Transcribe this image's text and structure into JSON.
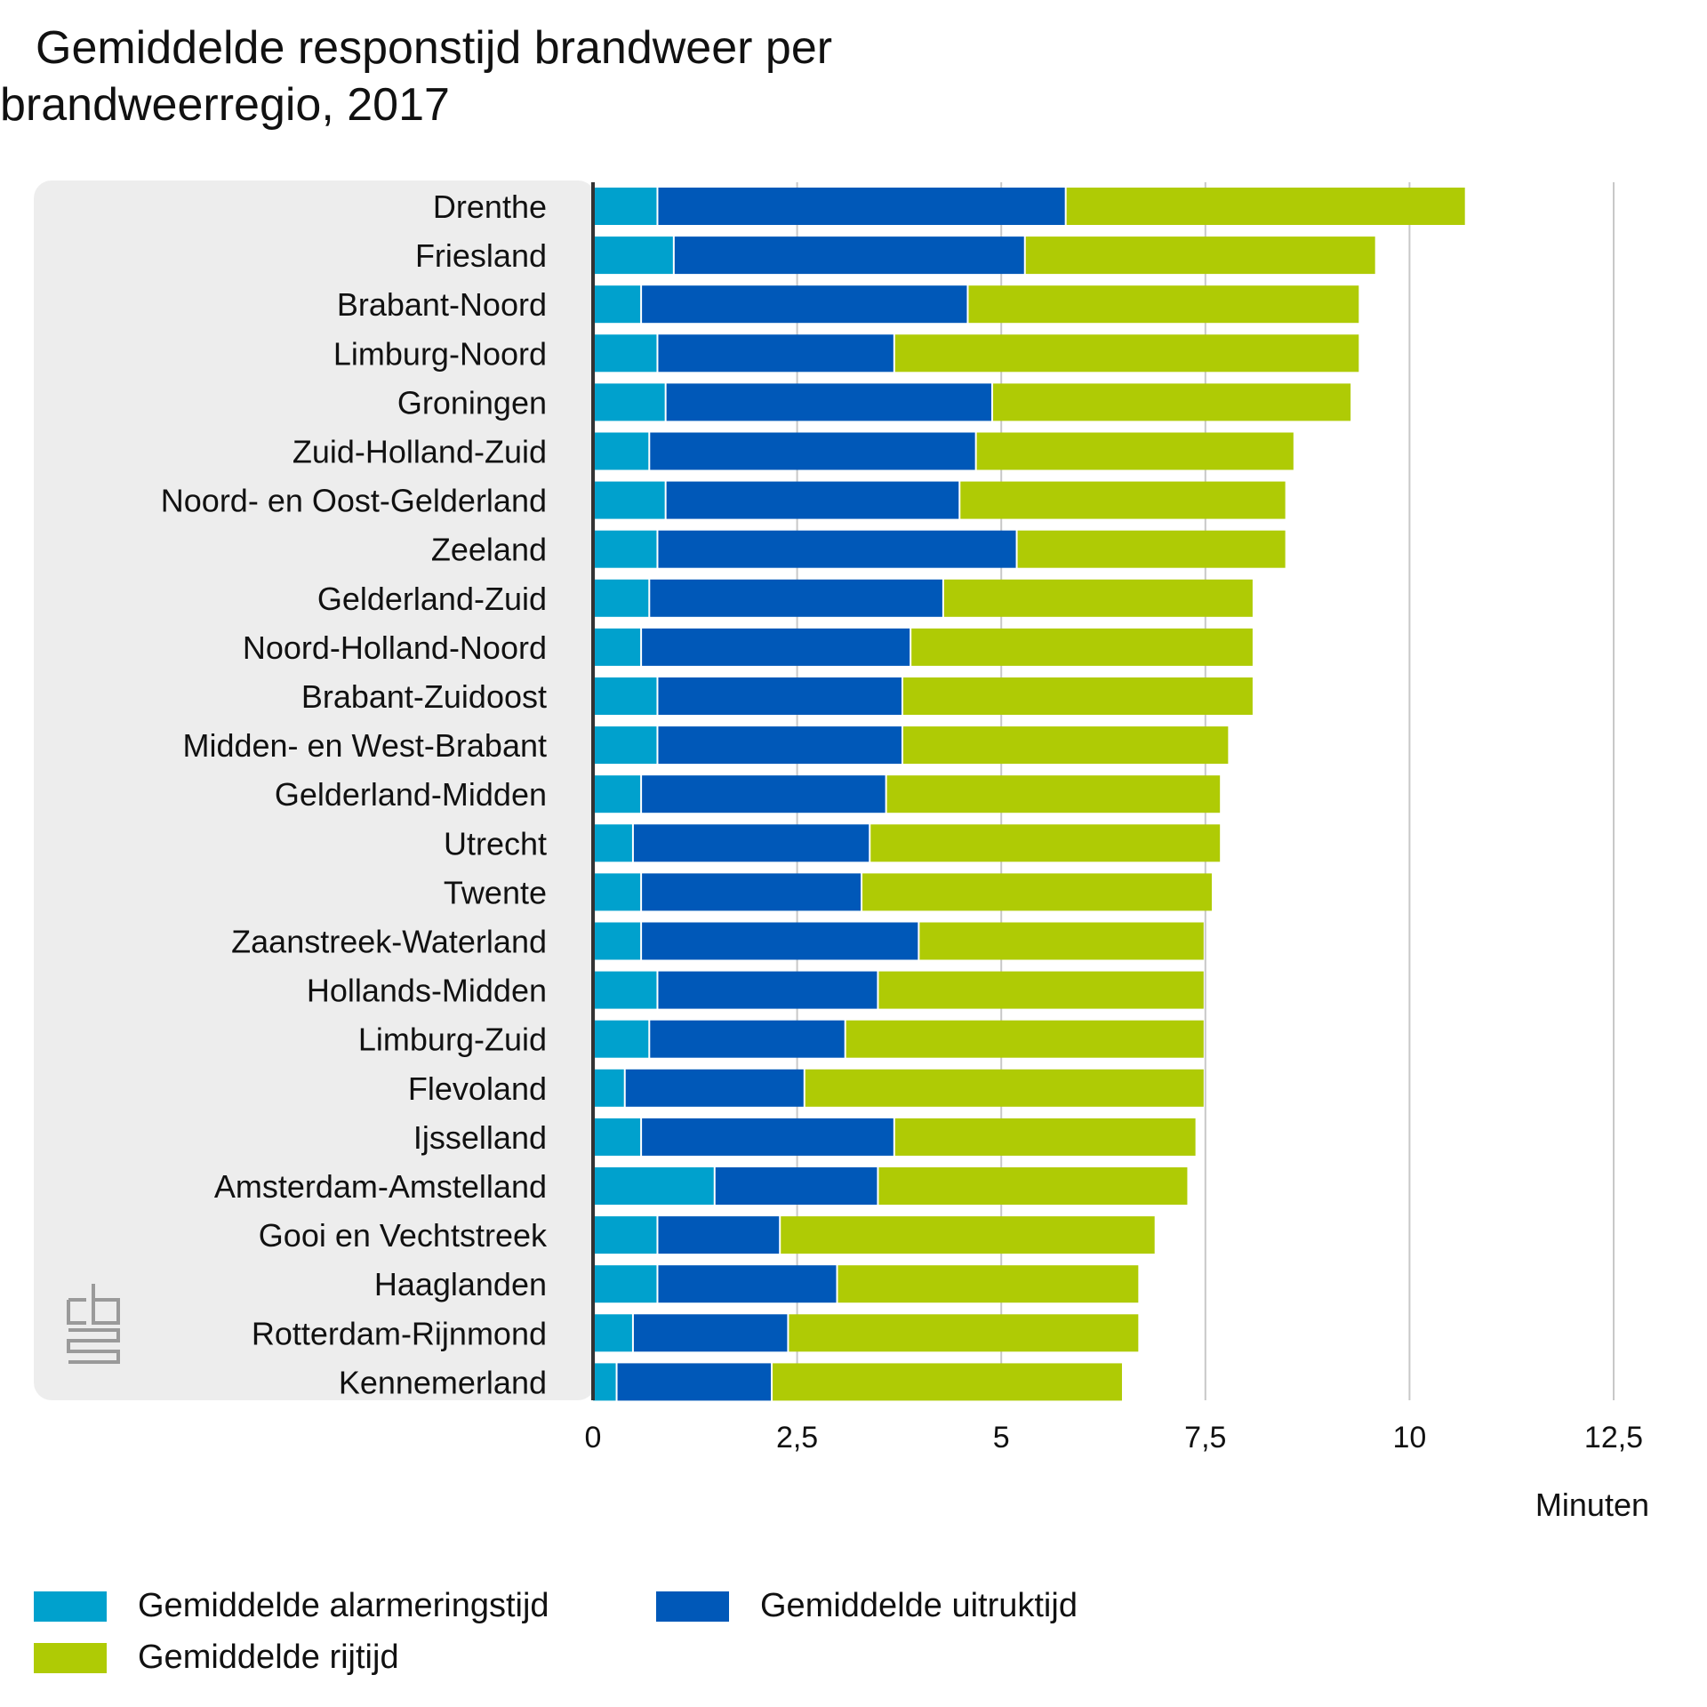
{
  "title_lines": [
    "Gemiddelde responstijd brandweer per",
    "brandweerregio, 2017"
  ],
  "logo_name": "cbs-logo",
  "legend": [
    {
      "label": "Gemiddelde alarmeringstijd",
      "color": "#00a1cd"
    },
    {
      "label": "Gemiddelde uitruktijd",
      "color": "#0058b8"
    },
    {
      "label": "Gemiddelde rijtijd",
      "color": "#afcb05"
    }
  ],
  "chart_data": {
    "type": "bar",
    "orientation": "horizontal",
    "stacked": true,
    "title": "Gemiddelde responstijd brandweer per brandweerregio, 2017",
    "xlabel": "Minuten",
    "ylabel": "",
    "xlim": [
      0,
      12.5
    ],
    "xticks": [
      0,
      2.5,
      5,
      7.5,
      10,
      12.5
    ],
    "xtick_labels": [
      "0",
      "2,5",
      "5",
      "7,5",
      "10",
      "12,5"
    ],
    "grid": true,
    "legend_position": "bottom",
    "categories": [
      "Drenthe",
      "Friesland",
      "Brabant-Noord",
      "Limburg-Noord",
      "Groningen",
      "Zuid-Holland-Zuid",
      "Noord- en Oost-Gelderland",
      "Zeeland",
      "Gelderland-Zuid",
      "Noord-Holland-Noord",
      "Brabant-Zuidoost",
      "Midden- en West-Brabant",
      "Gelderland-Midden",
      "Utrecht",
      "Twente",
      "Zaanstreek-Waterland",
      "Hollands-Midden",
      "Limburg-Zuid",
      "Flevoland",
      "Ijsselland",
      "Amsterdam-Amstelland",
      "Gooi en Vechtstreek",
      "Haaglanden",
      "Rotterdam-Rijnmond",
      "Kennemerland"
    ],
    "series": [
      {
        "name": "Gemiddelde alarmeringstijd",
        "color": "#00a1cd",
        "values": [
          0.8,
          1.0,
          0.6,
          0.8,
          0.9,
          0.7,
          0.9,
          0.8,
          0.7,
          0.6,
          0.8,
          0.8,
          0.6,
          0.5,
          0.6,
          0.6,
          0.8,
          0.7,
          0.4,
          0.6,
          1.5,
          0.8,
          0.8,
          0.5,
          0.3
        ]
      },
      {
        "name": "Gemiddelde uitruktijd",
        "color": "#0058b8",
        "values": [
          5.0,
          4.3,
          4.0,
          2.9,
          4.0,
          4.0,
          3.6,
          4.4,
          3.6,
          3.3,
          3.0,
          3.0,
          3.0,
          2.9,
          2.7,
          3.4,
          2.7,
          2.4,
          2.2,
          3.1,
          2.0,
          1.5,
          2.2,
          1.9,
          1.9
        ]
      },
      {
        "name": "Gemiddelde rijtijd",
        "color": "#afcb05",
        "values": [
          4.9,
          4.3,
          4.8,
          5.7,
          4.4,
          3.9,
          4.0,
          3.3,
          3.8,
          4.2,
          4.3,
          4.0,
          4.1,
          4.3,
          4.3,
          3.5,
          4.0,
          4.4,
          4.9,
          3.7,
          3.8,
          4.6,
          3.7,
          4.3,
          4.3
        ]
      }
    ]
  }
}
